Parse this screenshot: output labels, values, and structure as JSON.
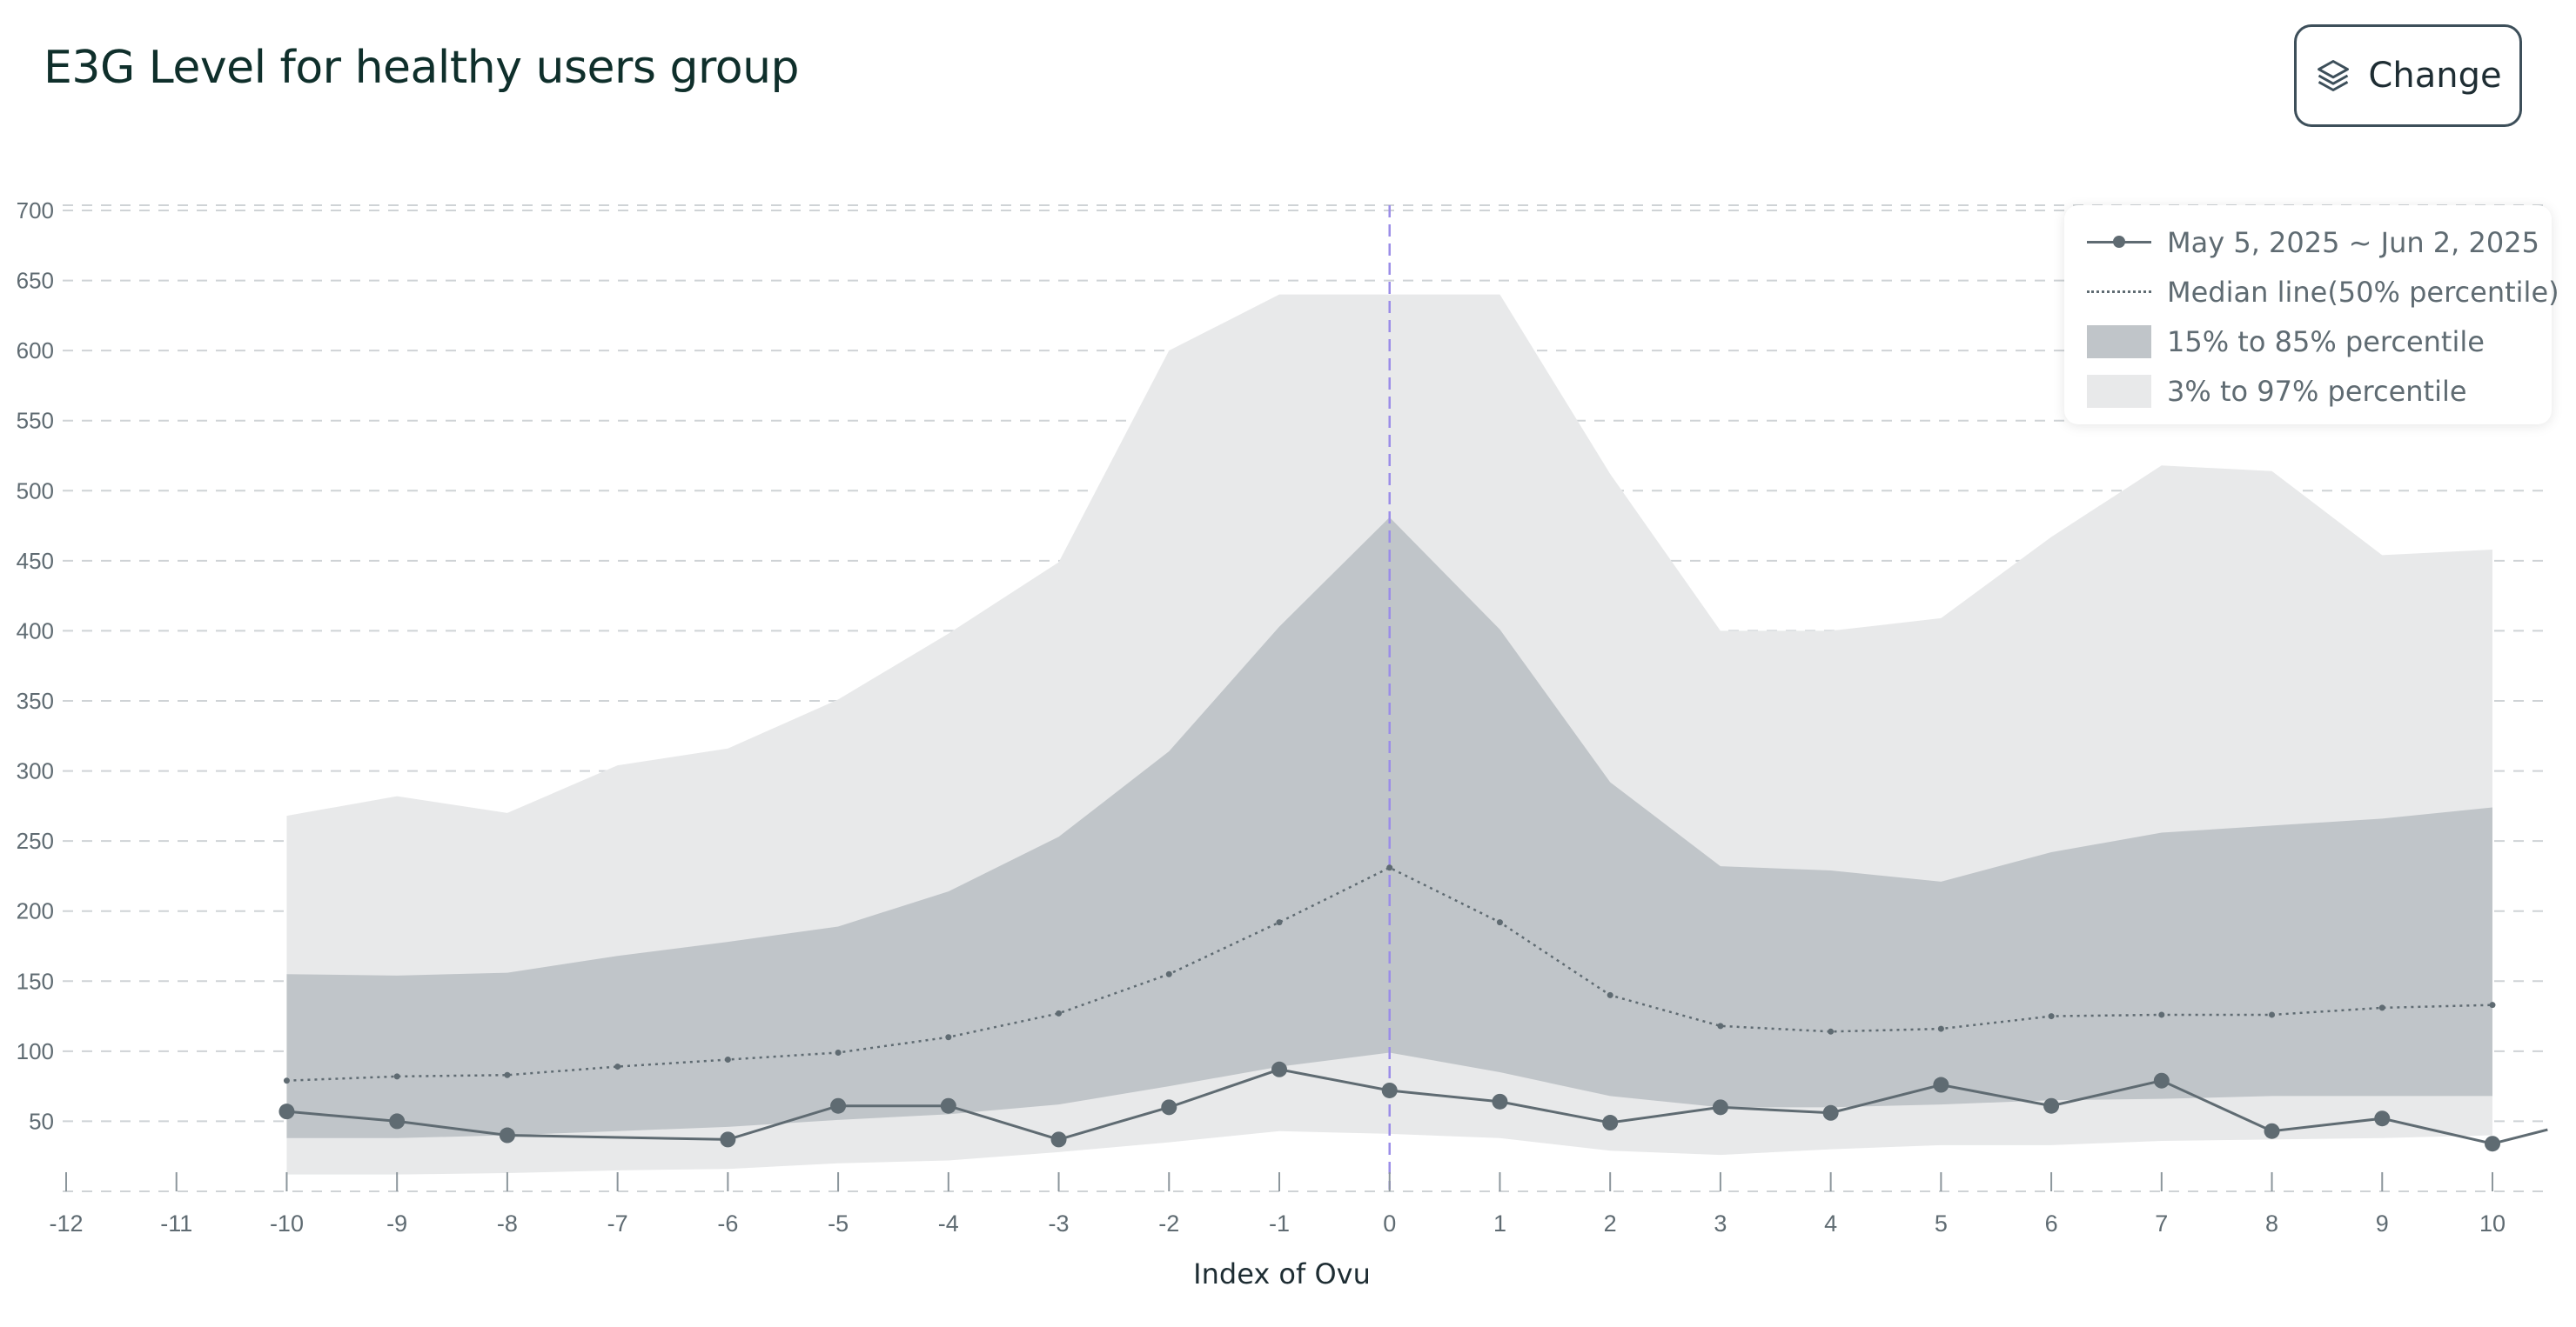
{
  "header": {
    "title": "E3G Level for healthy users group",
    "change_label": "Change",
    "change_icon": "layers-icon"
  },
  "chart_data": {
    "type": "area",
    "xlabel": "Index of Ovu",
    "ylabel": "",
    "xlim": [
      -12,
      10.5
    ],
    "ylim": [
      0,
      700
    ],
    "x_ticks": [
      -12,
      -11,
      -10,
      -9,
      -8,
      -7,
      -6,
      -5,
      -4,
      -3,
      -2,
      -1,
      0,
      1,
      2,
      3,
      4,
      5,
      6,
      7,
      8,
      9,
      10
    ],
    "y_ticks": [
      50,
      100,
      150,
      200,
      250,
      300,
      350,
      400,
      450,
      500,
      550,
      600,
      650,
      700
    ],
    "grid": "horizontal-dashed",
    "vertical_marker_x": 0,
    "legend_position": "top-right",
    "x": [
      -10,
      -9,
      -8,
      -7,
      -6,
      -5,
      -4,
      -3,
      -2,
      -1,
      0,
      1,
      2,
      3,
      4,
      5,
      6,
      7,
      8,
      9,
      10
    ],
    "bands": [
      {
        "name": "3% to 97% percentile",
        "color": "#e8e9ea",
        "lower": [
          12,
          12,
          13,
          15,
          16,
          20,
          22,
          28,
          35,
          43,
          41,
          38,
          29,
          26,
          30,
          33,
          33,
          36,
          37,
          38,
          40
        ],
        "upper": [
          268,
          282,
          270,
          304,
          316,
          351,
          398,
          449,
          600,
          640,
          640,
          640,
          512,
          400,
          400,
          409,
          467,
          518,
          514,
          454,
          458
        ]
      },
      {
        "name": "15% to 85% percentile",
        "color": "#c0c5c9",
        "lower": [
          38,
          38,
          40,
          43,
          46,
          51,
          55,
          62,
          75,
          89,
          99,
          85,
          68,
          60,
          60,
          62,
          65,
          66,
          68,
          68,
          68
        ]
      }
    ],
    "band_15_85_upper": [
      155,
      154,
      156,
      168,
      178,
      189,
      214,
      253,
      314,
      403,
      481,
      401,
      292,
      232,
      229,
      221,
      242,
      256,
      261,
      266,
      274
    ],
    "median": {
      "name": "Median line(50% percentile)",
      "values": [
        79,
        82,
        83,
        89,
        94,
        99,
        110,
        127,
        155,
        192,
        231,
        192,
        140,
        118,
        114,
        116,
        125,
        126,
        126,
        131,
        133
      ]
    },
    "series": [
      {
        "name": "May 5, 2025 ~ Jun 2, 2025",
        "color": "#5f6b72",
        "points": [
          [
            -10,
            57
          ],
          [
            -9,
            50
          ],
          [
            -8,
            40
          ],
          [
            -6,
            37
          ],
          [
            -5,
            61
          ],
          [
            -4,
            61
          ],
          [
            -3,
            37
          ],
          [
            -2,
            60
          ],
          [
            -1,
            87
          ],
          [
            0,
            72
          ],
          [
            1,
            64
          ],
          [
            2,
            49
          ],
          [
            3,
            60
          ],
          [
            4,
            56
          ],
          [
            5,
            76
          ],
          [
            6,
            61
          ],
          [
            7,
            79
          ],
          [
            8,
            43
          ],
          [
            9,
            52
          ],
          [
            10,
            34
          ],
          [
            10.5,
            44
          ]
        ],
        "marker_points": [
          [
            -10,
            57
          ],
          [
            -9,
            50
          ],
          [
            -8,
            40
          ],
          [
            -6,
            37
          ],
          [
            -5,
            61
          ],
          [
            -4,
            61
          ],
          [
            -3,
            37
          ],
          [
            -2,
            60
          ],
          [
            -1,
            87
          ],
          [
            0,
            72
          ],
          [
            1,
            64
          ],
          [
            2,
            49
          ],
          [
            3,
            60
          ],
          [
            4,
            56
          ],
          [
            5,
            76
          ],
          [
            6,
            61
          ],
          [
            7,
            79
          ],
          [
            8,
            43
          ],
          [
            9,
            52
          ],
          [
            10,
            34
          ]
        ]
      }
    ]
  },
  "legend": {
    "items": [
      {
        "label": "May 5, 2025 ~ Jun 2, 2025",
        "swatch": "line-marker"
      },
      {
        "label": "Median line(50% percentile)",
        "swatch": "dotted"
      },
      {
        "label": "15% to 85% percentile",
        "swatch": "dark-fill"
      },
      {
        "label": "3% to 97% percentile",
        "swatch": "light-fill"
      }
    ]
  }
}
